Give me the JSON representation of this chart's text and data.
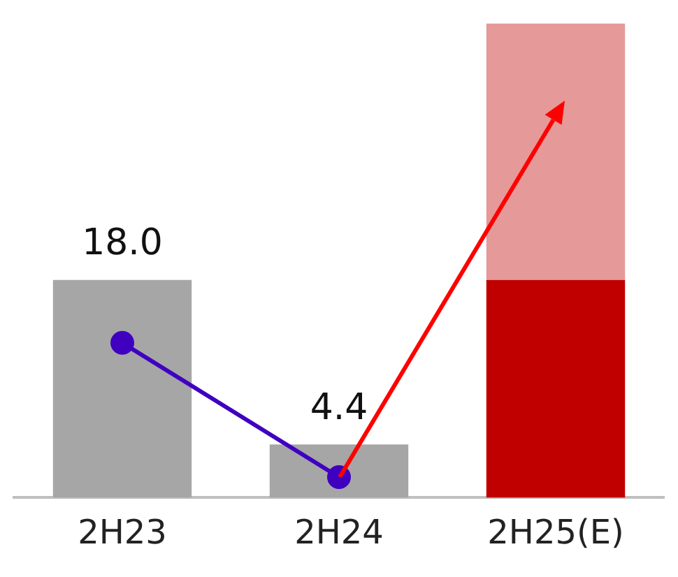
{
  "chart_data": {
    "type": "bar",
    "categories": [
      "2H23",
      "2H24",
      "2H25(E)"
    ],
    "stacked": true,
    "legend": false,
    "grid": false,
    "series": [
      {
        "colors": [
          "#a6a6a6",
          "#a6a6a6",
          "#c00000"
        ],
        "values": [
          18.0,
          4.4,
          18.0
        ],
        "value_labels": [
          "18.0",
          "4.4",
          null
        ]
      },
      {
        "color": "#c00000",
        "values": [
          null,
          null,
          21.2
        ]
      },
      {
        "type": "line",
        "color": "#3f00c0",
        "marker": "circle",
        "values": [
          12.8,
          1.7,
          null
        ]
      }
    ]
  }
}
